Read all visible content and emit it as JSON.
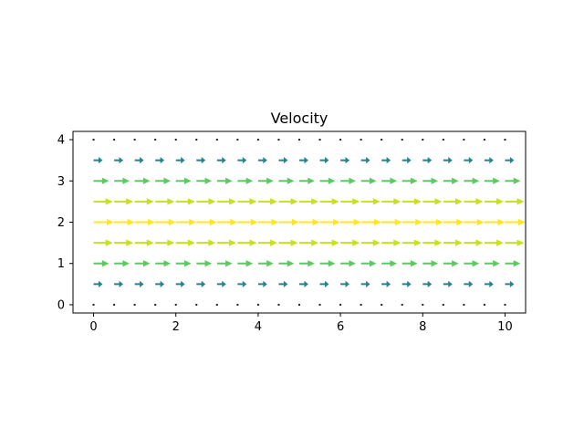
{
  "chart_data": {
    "type": "quiver",
    "title": "Velocity",
    "xlabel": "",
    "ylabel": "",
    "xlim": [
      -0.5,
      10.5
    ],
    "ylim": [
      -0.2,
      4.2
    ],
    "x_ticks": [
      0,
      2,
      4,
      6,
      8,
      10
    ],
    "y_ticks": [
      0,
      1,
      2,
      3,
      4
    ],
    "grid": false,
    "x": [
      0,
      0.5,
      1,
      1.5,
      2,
      2.5,
      3,
      3.5,
      4,
      4.5,
      5,
      5.5,
      6,
      6.5,
      7,
      7.5,
      8,
      8.5,
      9,
      9.5,
      10
    ],
    "rows": [
      {
        "y": 4.0,
        "u": 0.0,
        "v": 0,
        "color": "#440154"
      },
      {
        "y": 3.5,
        "u": 0.44,
        "v": 0,
        "color": "#25858e"
      },
      {
        "y": 3.0,
        "u": 0.75,
        "v": 0,
        "color": "#5ec962"
      },
      {
        "y": 2.5,
        "u": 0.94,
        "v": 0,
        "color": "#c8e020"
      },
      {
        "y": 2.0,
        "u": 1.0,
        "v": 0,
        "color": "#fde725"
      },
      {
        "y": 1.5,
        "u": 0.94,
        "v": 0,
        "color": "#c8e020"
      },
      {
        "y": 1.0,
        "u": 0.75,
        "v": 0,
        "color": "#5ec962"
      },
      {
        "y": 0.5,
        "u": 0.44,
        "v": 0,
        "color": "#25858e"
      },
      {
        "y": 0.0,
        "u": 0.0,
        "v": 0,
        "color": "#440154"
      }
    ]
  }
}
